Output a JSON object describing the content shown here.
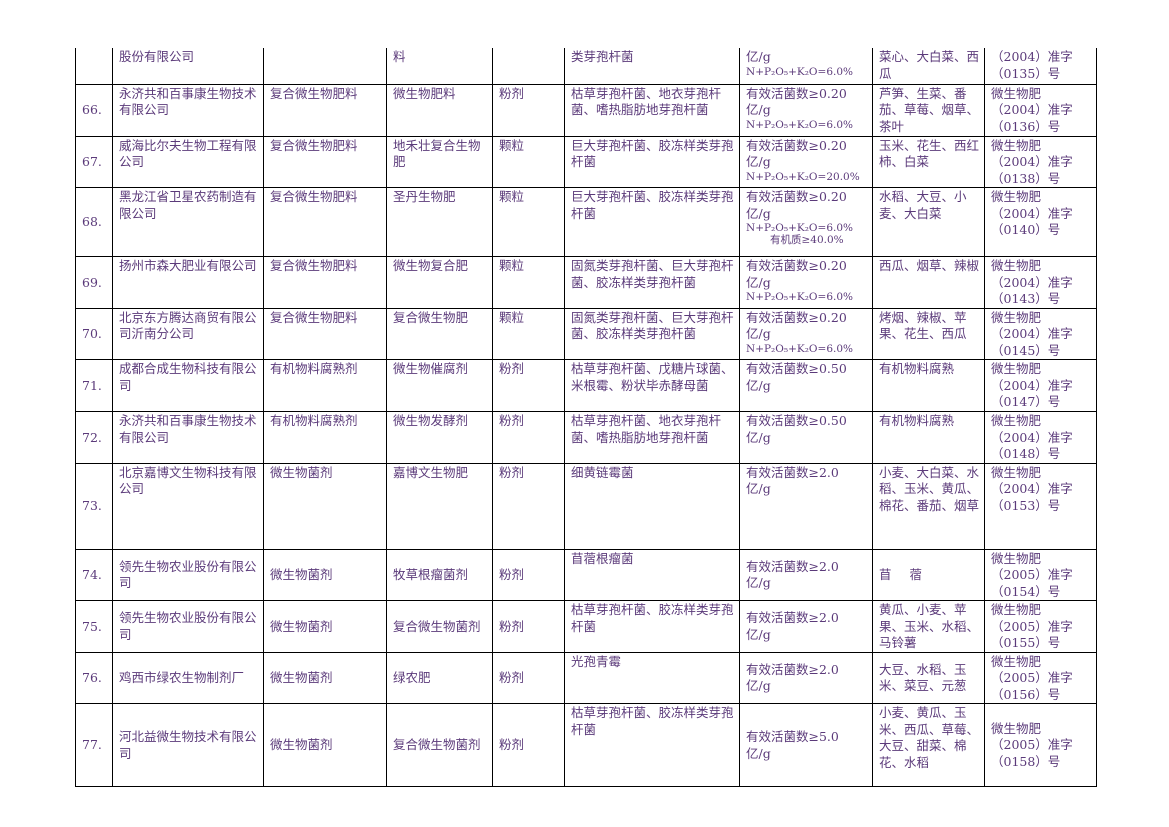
{
  "rows": [
    {
      "num": "",
      "company": "股份有限公司",
      "category": "",
      "product": "料",
      "form": "",
      "strain": "类芽孢杆菌",
      "content": [
        "亿/g"
      ],
      "content_small": [
        "N+P₂O₅+K₂O=6.0%"
      ],
      "crops": "菜心、大白菜、西瓜",
      "reg": [
        "（2004）准字",
        "（0135）号"
      ]
    },
    {
      "num": "66.",
      "company": "永济共和百事康生物技术有限公司",
      "category": "复合微生物肥料",
      "product": "微生物肥料",
      "form": "粉剂",
      "strain": "枯草芽孢杆菌、地衣芽孢杆菌、嗜热脂肪地芽孢杆菌",
      "content": [
        "有效活菌数≥0.20",
        "亿/g"
      ],
      "content_small": [
        "N+P₂O₅+K₂O=6.0%"
      ],
      "crops": "芦笋、生菜、番茄、草莓、烟草、茶叶",
      "reg": [
        "微生物肥",
        "（2004）准字",
        "（0136）号"
      ]
    },
    {
      "num": "67.",
      "company": "威海比尔夫生物工程有限公司",
      "category": "复合微生物肥料",
      "product": "地禾壮复合生物肥",
      "form": "颗粒",
      "strain": "巨大芽孢杆菌、胶冻样类芽孢杆菌",
      "content": [
        "有效活菌数≥0.20",
        "亿/g"
      ],
      "content_small": [
        "N+P₂O₅+K₂O=20.0%"
      ],
      "crops": "玉米、花生、西红柿、白菜",
      "reg": [
        "微生物肥",
        "（2004）准字",
        "（0138）号"
      ]
    },
    {
      "num": "68.",
      "company": "黑龙江省卫星农药制造有限公司",
      "category": "复合微生物肥料",
      "product": "圣丹生物肥",
      "form": "颗粒",
      "strain": "巨大芽孢杆菌、胶冻样类芽孢杆菌",
      "content": [
        "有效活菌数≥0.20",
        "亿/g"
      ],
      "content_small": [
        "N+P₂O₅+K₂O=6.0%",
        "有机质≥40.0%"
      ],
      "crops": "水稻、大豆、小麦、大白菜",
      "reg": [
        "微生物肥",
        "（2004）准字",
        "（0140）号"
      ]
    },
    {
      "num": "69.",
      "company": "扬州市森大肥业有限公司",
      "category": "复合微生物肥料",
      "product": "微生物复合肥",
      "form": "颗粒",
      "strain": "固氮类芽孢杆菌、巨大芽孢杆菌、胶冻样类芽孢杆菌",
      "content": [
        "有效活菌数≥0.20",
        "亿/g"
      ],
      "content_small": [
        "N+P₂O₅+K₂O=6.0%"
      ],
      "crops": "西瓜、烟草、辣椒",
      "reg": [
        "微生物肥",
        "（2004）准字",
        "（0143）号"
      ]
    },
    {
      "num": "70.",
      "company": "北京东方腾达商贸有限公司沂南分公司",
      "category": "复合微生物肥料",
      "product": "复合微生物肥",
      "form": "颗粒",
      "strain": "固氮类芽孢杆菌、巨大芽孢杆菌、胶冻样类芽孢杆菌",
      "content": [
        "有效活菌数≥0.20",
        "亿/g"
      ],
      "content_small": [
        "N+P₂O₅+K₂O=6.0%"
      ],
      "crops": "烤烟、辣椒、苹果、花生、西瓜",
      "reg": [
        "微生物肥",
        "（2004）准字",
        "（0145）号"
      ]
    },
    {
      "num": "71.",
      "company": "成都合成生物科技有限公司",
      "category": "有机物料腐熟剂",
      "product": "微生物催腐剂",
      "form": "粉剂",
      "strain": "枯草芽孢杆菌、戊糖片球菌、米根霉、粉状毕赤酵母菌",
      "content": [
        "有效活菌数≥0.50",
        "亿/g"
      ],
      "content_small": [],
      "crops": "有机物料腐熟",
      "reg": [
        "微生物肥",
        "（2004）准字",
        "（0147）号"
      ]
    },
    {
      "num": "72.",
      "company": "永济共和百事康生物技术有限公司",
      "category": "有机物料腐熟剂",
      "product": "微生物发酵剂",
      "form": "粉剂",
      "strain": "枯草芽孢杆菌、地衣芽孢杆菌、嗜热脂肪地芽孢杆菌",
      "content": [
        "有效活菌数≥0.50",
        "亿/g"
      ],
      "content_small": [],
      "crops": "有机物料腐熟",
      "reg": [
        "微生物肥",
        "（2004）准字",
        "（0148）号"
      ]
    },
    {
      "num": "73.",
      "company": "北京嘉博文生物科技有限公司",
      "category": "微生物菌剂",
      "product": "嘉博文生物肥",
      "form": "粉剂",
      "strain": "细黄链霉菌",
      "content": [
        "有效活菌数≥2.0",
        "亿/g"
      ],
      "content_small": [],
      "crops": "小麦、大白菜、水稻、玉米、黄瓜、棉花、番茄、烟草",
      "reg": [
        "微生物肥",
        "（2004）准字",
        "（0153）号"
      ]
    },
    {
      "num": "74.",
      "company": "领先生物农业股份有限公司",
      "category": "微生物菌剂",
      "product": "牧草根瘤菌剂",
      "form": "粉剂",
      "strain": "苜蓿根瘤菌",
      "content": [
        "有效活菌数≥2.0",
        "亿/g"
      ],
      "content_small": [],
      "crops": "苜蓿",
      "reg": [
        "微生物肥",
        "（2005）准字",
        "（0154）号"
      ]
    },
    {
      "num": "75.",
      "company": "领先生物农业股份有限公司",
      "category": "微生物菌剂",
      "product": "复合微生物菌剂",
      "form": "粉剂",
      "strain": "枯草芽孢杆菌、胶冻样类芽孢杆菌",
      "content": [
        "有效活菌数≥2.0",
        "亿/g"
      ],
      "content_small": [],
      "crops": "黄瓜、小麦、苹果、玉米、水稻、马铃薯",
      "reg": [
        "微生物肥",
        "（2005）准字",
        "（0155）号"
      ]
    },
    {
      "num": "76.",
      "company": "鸡西市绿农生物制剂厂",
      "category": "微生物菌剂",
      "product": "绿农肥",
      "form": "粉剂",
      "strain": "光孢青霉",
      "content": [
        "有效活菌数≥2.0",
        "亿/g"
      ],
      "content_small": [],
      "crops": "大豆、水稻、玉米、菜豆、元葱",
      "reg": [
        "微生物肥",
        "（2005）准字",
        "（0156）号"
      ]
    },
    {
      "num": "77.",
      "company": "河北益微生物技术有限公司",
      "category": "微生物菌剂",
      "product": "复合微生物菌剂",
      "form": "粉剂",
      "strain": "枯草芽孢杆菌、胶冻样类芽孢杆菌",
      "content": [
        "有效活菌数≥5.0",
        "亿/g"
      ],
      "content_small": [],
      "crops": "小麦、黄瓜、玉米、西瓜、草莓、大豆、甜菜、棉花、水稻",
      "reg": [
        "微生物肥",
        "（2005）准字",
        "（0158）号"
      ]
    }
  ]
}
